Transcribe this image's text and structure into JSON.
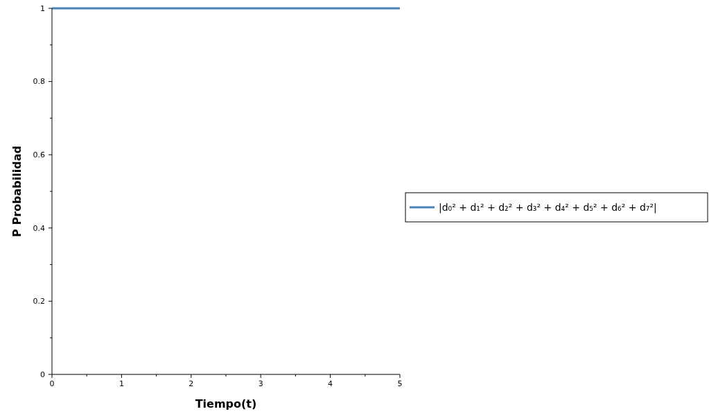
{
  "chart_data": {
    "type": "line",
    "xlabel": "Tiempo(t)",
    "ylabel": "P Probabilidad",
    "x": [
      0,
      5
    ],
    "series": [
      {
        "name": "|d₀² + d₁² + d₂² + d₃² + d₄² + d₅² + d₆² + d₇²|",
        "color": "#4682b4",
        "values": [
          1,
          1
        ]
      }
    ],
    "xlim": [
      0,
      5
    ],
    "ylim": [
      0,
      1
    ],
    "xticks": [
      0,
      {
        "value": 0.5,
        "label": null
      },
      1,
      {
        "value": 1.5,
        "label": null
      },
      2,
      {
        "value": 2.5,
        "label": null
      },
      3,
      {
        "value": 3.5,
        "label": null
      },
      4,
      {
        "value": 4.5,
        "label": null
      },
      5
    ],
    "yticks": [
      0,
      {
        "value": 0.1,
        "label": null
      },
      0.2,
      {
        "value": 0.3,
        "label": null
      },
      0.4,
      {
        "value": 0.5,
        "label": null
      },
      0.6,
      {
        "value": 0.7,
        "label": null
      },
      0.8,
      {
        "value": 0.9,
        "label": null
      },
      1
    ],
    "legend": "right",
    "grid": false,
    "marker": "none",
    "line_style": "solid"
  }
}
